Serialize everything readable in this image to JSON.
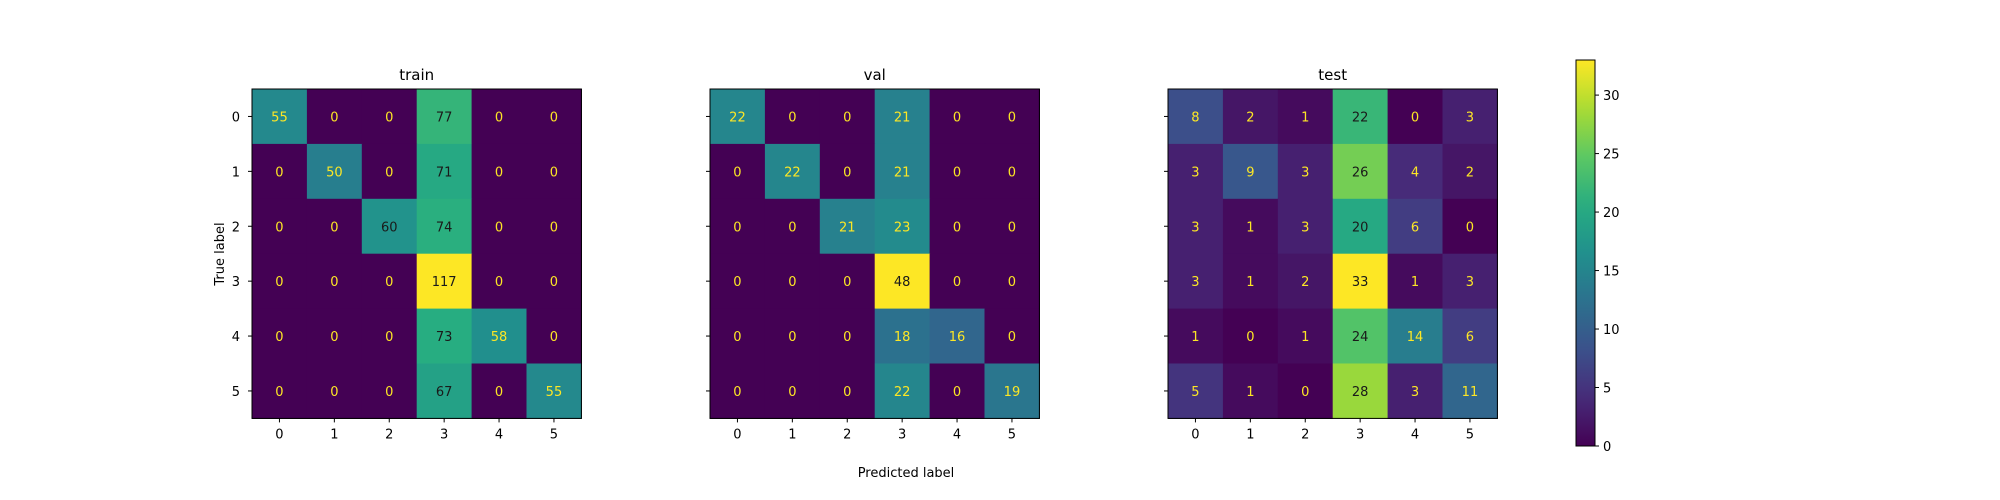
{
  "chart_data": {
    "type": "heatmap",
    "colormap": "viridis",
    "xlabel": "Predicted label",
    "ylabel": "True label",
    "categories": [
      "0",
      "1",
      "2",
      "3",
      "4",
      "5"
    ],
    "annotation_colors": {
      "on_dark": "#fde725",
      "on_light": "#1a1a1a"
    },
    "colorbar": {
      "range": [
        0,
        33
      ],
      "ticks": [
        0,
        5,
        10,
        15,
        20,
        25,
        30
      ]
    },
    "panels": [
      {
        "title": "train",
        "vmax": 117,
        "matrix": [
          [
            55,
            0,
            0,
            77,
            0,
            0
          ],
          [
            0,
            50,
            0,
            71,
            0,
            0
          ],
          [
            0,
            0,
            60,
            74,
            0,
            0
          ],
          [
            0,
            0,
            0,
            117,
            0,
            0
          ],
          [
            0,
            0,
            0,
            73,
            58,
            0
          ],
          [
            0,
            0,
            0,
            67,
            0,
            55
          ]
        ]
      },
      {
        "title": "val",
        "vmax": 48,
        "matrix": [
          [
            22,
            0,
            0,
            21,
            0,
            0
          ],
          [
            0,
            22,
            0,
            21,
            0,
            0
          ],
          [
            0,
            0,
            21,
            23,
            0,
            0
          ],
          [
            0,
            0,
            0,
            48,
            0,
            0
          ],
          [
            0,
            0,
            0,
            18,
            16,
            0
          ],
          [
            0,
            0,
            0,
            22,
            0,
            19
          ]
        ]
      },
      {
        "title": "test",
        "vmax": 33,
        "matrix": [
          [
            8,
            2,
            1,
            22,
            0,
            3
          ],
          [
            3,
            9,
            3,
            26,
            4,
            2
          ],
          [
            3,
            1,
            3,
            20,
            6,
            0
          ],
          [
            3,
            1,
            2,
            33,
            1,
            3
          ],
          [
            1,
            0,
            1,
            24,
            14,
            6
          ],
          [
            5,
            1,
            0,
            28,
            3,
            11
          ]
        ]
      }
    ]
  }
}
